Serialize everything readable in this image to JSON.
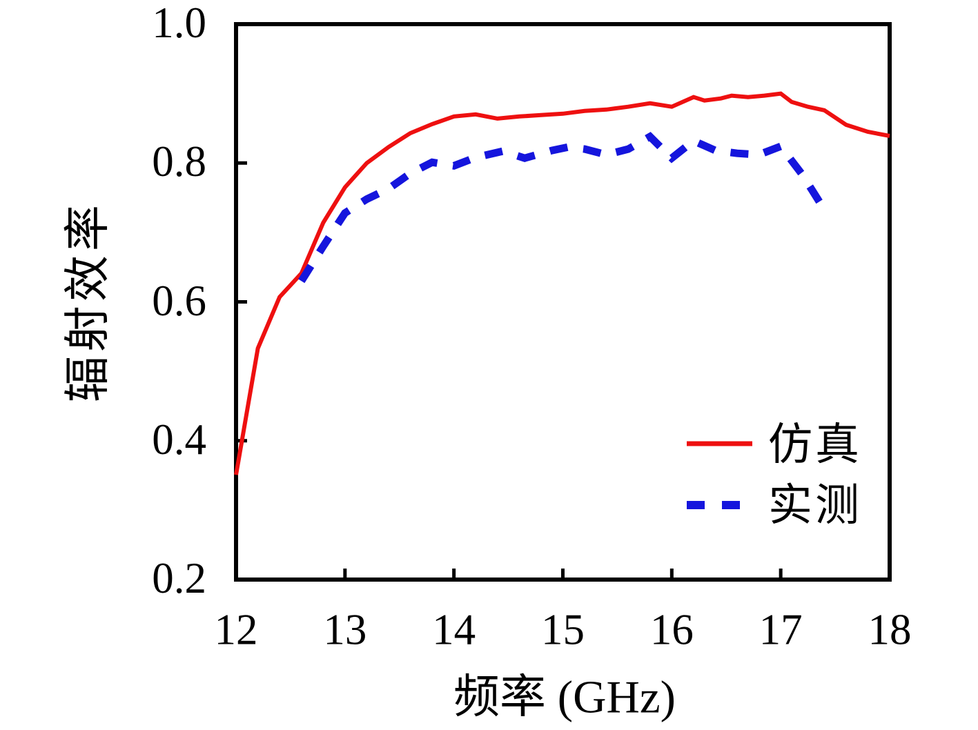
{
  "figure": {
    "background": "#ffffff",
    "frame_color": "#000000",
    "text_color": "#000000"
  },
  "chart_data": {
    "type": "line",
    "title": "",
    "xlabel": "频率 (GHz)",
    "ylabel": "辐射效率",
    "xlim": [
      12,
      18
    ],
    "ylim": [
      0.2,
      1.0
    ],
    "grid": false,
    "x_ticks": {
      "values": [
        12,
        13,
        14,
        15,
        16,
        17,
        18
      ],
      "labels": [
        "12",
        "13",
        "14",
        "15",
        "16",
        "17",
        "18"
      ]
    },
    "y_ticks": {
      "values": [
        0.2,
        0.4,
        0.6,
        0.8,
        1.0
      ],
      "labels": [
        "0.2",
        "0.4",
        "0.6",
        "0.8",
        "1.0"
      ]
    },
    "legend": {
      "position": "lower-right",
      "entries": [
        {
          "label": "仿真",
          "style": "solid",
          "color": "#ee1010"
        },
        {
          "label": "实测",
          "style": "dashed",
          "color": "#1515dd"
        }
      ]
    },
    "series": [
      {
        "name": "仿真",
        "color": "#ee1010",
        "style": "solid",
        "x": [
          12.0,
          12.2,
          12.4,
          12.6,
          12.8,
          13.0,
          13.2,
          13.4,
          13.6,
          13.8,
          14.0,
          14.2,
          14.4,
          14.6,
          14.8,
          15.0,
          15.2,
          15.4,
          15.6,
          15.8,
          16.0,
          16.2,
          16.3,
          16.45,
          16.55,
          16.7,
          16.85,
          17.0,
          17.1,
          17.25,
          17.4,
          17.6,
          17.8,
          18.0
        ],
        "y": [
          0.351,
          0.533,
          0.607,
          0.641,
          0.714,
          0.765,
          0.8,
          0.823,
          0.843,
          0.856,
          0.867,
          0.87,
          0.864,
          0.867,
          0.869,
          0.871,
          0.875,
          0.877,
          0.881,
          0.886,
          0.881,
          0.895,
          0.89,
          0.893,
          0.897,
          0.895,
          0.897,
          0.9,
          0.888,
          0.881,
          0.876,
          0.855,
          0.845,
          0.839
        ]
      },
      {
        "name": "实测",
        "color": "#1515dd",
        "style": "dashed",
        "x": [
          12.6,
          12.8,
          13.0,
          13.2,
          13.4,
          13.6,
          13.8,
          14.0,
          14.2,
          14.45,
          14.65,
          14.9,
          15.05,
          15.2,
          15.4,
          15.6,
          15.8,
          16.0,
          16.2,
          16.4,
          16.6,
          16.8,
          17.0,
          17.2,
          17.4
        ],
        "y": [
          0.63,
          0.68,
          0.728,
          0.748,
          0.763,
          0.785,
          0.801,
          0.796,
          0.808,
          0.817,
          0.807,
          0.818,
          0.823,
          0.82,
          0.812,
          0.82,
          0.838,
          0.807,
          0.832,
          0.818,
          0.814,
          0.812,
          0.824,
          0.783,
          0.733
        ]
      }
    ]
  }
}
